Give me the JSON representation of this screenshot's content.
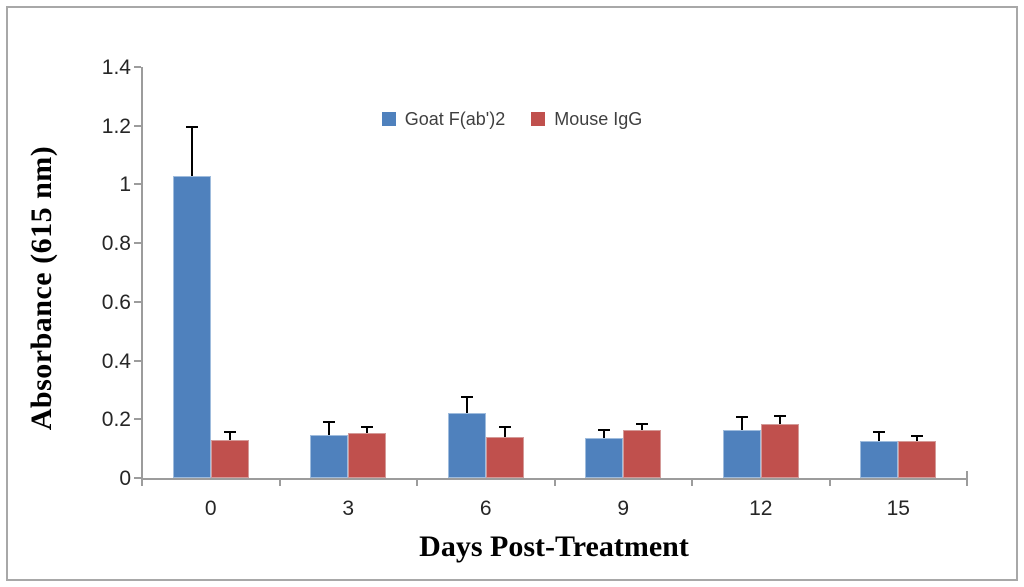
{
  "figure": {
    "background": "#FFFFFF",
    "border_color": "#A8A8A8"
  },
  "chart_data": {
    "type": "bar",
    "title": "",
    "xlabel": "Days Post-Treatment",
    "ylabel": "Absorbance (615 nm)",
    "categories": [
      "0",
      "3",
      "6",
      "9",
      "12",
      "15"
    ],
    "series": [
      {
        "name": "Goat F(ab')2",
        "color": "#4F81BD",
        "border_color": "#9FBCDD",
        "values": [
          1.03,
          0.145,
          0.22,
          0.135,
          0.165,
          0.125
        ],
        "errors": [
          0.165,
          0.045,
          0.055,
          0.028,
          0.042,
          0.032
        ]
      },
      {
        "name": "Mouse IgG",
        "color": "#C0504D",
        "border_color": "#D49A98",
        "values": [
          0.13,
          0.153,
          0.14,
          0.162,
          0.185,
          0.125
        ],
        "errors": [
          0.025,
          0.02,
          0.035,
          0.022,
          0.025,
          0.017
        ]
      }
    ],
    "ylim": [
      0,
      1.4
    ],
    "yticks": [
      0,
      0.2,
      0.4,
      0.6,
      0.8,
      1,
      1.2,
      1.4
    ],
    "ytick_labels": [
      "0",
      "0.2",
      "0.4",
      "0.6",
      "0.8",
      "1",
      "1.2",
      "1.4"
    ],
    "grid": false,
    "legend_position": "top-center",
    "error_bar_color": "#000000",
    "axis_color": "#9C9C9C"
  }
}
